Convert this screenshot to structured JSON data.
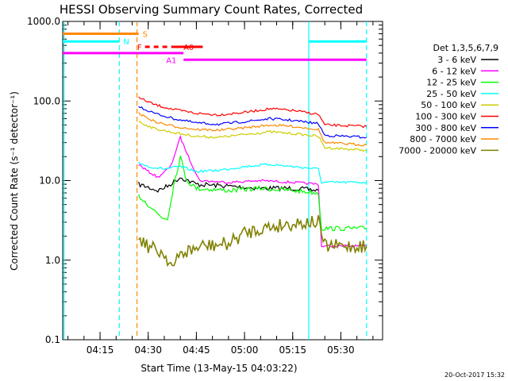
{
  "chart_data": {
    "type": "line",
    "title": "HESSI Observing Summary Count Rates, Corrected",
    "xlabel": "Start Time (13-May-15 04:03:22)",
    "ylabel": "Corrected Count Rate (s⁻¹ detector⁻¹)",
    "yscale": "log",
    "ylim": [
      0.1,
      1000
    ],
    "xlim": [
      "04:03:22",
      "05:43:00"
    ],
    "x_ticks": [
      "04:15",
      "04:30",
      "04:45",
      "05:00",
      "05:15",
      "05:30"
    ],
    "y_ticks": [
      "0.1",
      "1.0",
      "10.0",
      "100.0",
      "1000.0"
    ],
    "legend_title": "Det 1,3,5,6,7,9",
    "legend_position": "right",
    "series": [
      {
        "name": "3 - 6 keV",
        "color": "#000000",
        "points": [
          [
            "04:27",
            9.0
          ],
          [
            "04:33",
            7.5
          ],
          [
            "04:36",
            8.5
          ],
          [
            "04:40",
            11.0
          ],
          [
            "04:45",
            9.0
          ],
          [
            "04:55",
            8.5
          ],
          [
            "05:05",
            8.0
          ],
          [
            "05:15",
            8.0
          ],
          [
            "05:23",
            7.5
          ]
        ]
      },
      {
        "name": "6 - 12 keV",
        "color": "#ff00ff",
        "points": [
          [
            "04:27",
            16.0
          ],
          [
            "04:30",
            13.0
          ],
          [
            "04:33",
            11.0
          ],
          [
            "04:37",
            15.0
          ],
          [
            "04:40",
            35.0
          ],
          [
            "04:43",
            18.0
          ],
          [
            "04:46",
            10.0
          ],
          [
            "04:55",
            9.5
          ],
          [
            "05:05",
            10.0
          ],
          [
            "05:15",
            9.5
          ],
          [
            "05:23",
            9.0
          ],
          [
            "05:24",
            1.5
          ],
          [
            "05:38",
            1.5
          ]
        ]
      },
      {
        "name": "12 - 25 keV",
        "color": "#00ff00",
        "points": [
          [
            "04:27",
            6.5
          ],
          [
            "04:30",
            5.0
          ],
          [
            "04:34",
            3.5
          ],
          [
            "04:36",
            3.3
          ],
          [
            "04:38",
            9.0
          ],
          [
            "04:40",
            20.0
          ],
          [
            "04:42",
            10.0
          ],
          [
            "04:45",
            8.0
          ],
          [
            "04:55",
            7.5
          ],
          [
            "05:05",
            8.0
          ],
          [
            "05:15",
            7.5
          ],
          [
            "05:23",
            7.0
          ],
          [
            "05:24",
            2.5
          ],
          [
            "05:38",
            2.5
          ]
        ]
      },
      {
        "name": "25 - 50 keV",
        "color": "#00ffff",
        "points": [
          [
            "04:27",
            17.0
          ],
          [
            "04:30",
            15.0
          ],
          [
            "04:35",
            14.0
          ],
          [
            "04:40",
            15.0
          ],
          [
            "04:45",
            13.0
          ],
          [
            "04:52",
            13.5
          ],
          [
            "05:00",
            15.0
          ],
          [
            "05:08",
            16.0
          ],
          [
            "05:15",
            15.0
          ],
          [
            "05:23",
            14.0
          ],
          [
            "05:24",
            9.5
          ],
          [
            "05:38",
            9.5
          ]
        ]
      },
      {
        "name": "50 - 100 keV",
        "color": "#cccc00",
        "points": [
          [
            "04:27",
            55.0
          ],
          [
            "04:32",
            45.0
          ],
          [
            "04:38",
            40.0
          ],
          [
            "04:45",
            36.0
          ],
          [
            "04:52",
            35.0
          ],
          [
            "05:00",
            38.0
          ],
          [
            "05:08",
            41.0
          ],
          [
            "05:15",
            39.0
          ],
          [
            "05:23",
            36.0
          ],
          [
            "05:25",
            26.0
          ],
          [
            "05:38",
            24.0
          ]
        ]
      },
      {
        "name": "100 - 300 keV",
        "color": "#ff0000",
        "points": [
          [
            "04:27",
            110.0
          ],
          [
            "04:32",
            90.0
          ],
          [
            "04:38",
            78.0
          ],
          [
            "04:45",
            70.0
          ],
          [
            "04:52",
            67.0
          ],
          [
            "05:00",
            72.0
          ],
          [
            "05:08",
            80.0
          ],
          [
            "05:15",
            76.0
          ],
          [
            "05:23",
            68.0
          ],
          [
            "05:25",
            50.0
          ],
          [
            "05:38",
            48.0
          ]
        ]
      },
      {
        "name": "300 - 800 keV",
        "color": "#0000ff",
        "points": [
          [
            "04:27",
            85.0
          ],
          [
            "04:32",
            70.0
          ],
          [
            "04:38",
            60.0
          ],
          [
            "04:45",
            53.0
          ],
          [
            "04:52",
            51.0
          ],
          [
            "05:00",
            55.0
          ],
          [
            "05:08",
            60.0
          ],
          [
            "05:15",
            57.0
          ],
          [
            "05:23",
            52.0
          ],
          [
            "05:25",
            37.0
          ],
          [
            "05:38",
            35.0
          ]
        ]
      },
      {
        "name": "800 - 7000 keV",
        "color": "#ff8800",
        "points": [
          [
            "04:27",
            70.0
          ],
          [
            "04:32",
            55.0
          ],
          [
            "04:38",
            48.0
          ],
          [
            "04:45",
            44.0
          ],
          [
            "04:52",
            43.0
          ],
          [
            "05:00",
            46.0
          ],
          [
            "05:08",
            50.0
          ],
          [
            "05:15",
            48.0
          ],
          [
            "05:23",
            44.0
          ],
          [
            "05:25",
            30.0
          ],
          [
            "05:38",
            28.0
          ]
        ]
      },
      {
        "name": "7000 - 20000 keV",
        "color": "#808000",
        "points": [
          [
            "04:27",
            2.0
          ],
          [
            "04:30",
            1.5
          ],
          [
            "04:35",
            1.2
          ],
          [
            "04:38",
            0.8
          ],
          [
            "04:40",
            1.2
          ],
          [
            "04:47",
            1.5
          ],
          [
            "04:55",
            1.6
          ],
          [
            "05:00",
            2.2
          ],
          [
            "05:05",
            2.5
          ],
          [
            "05:10",
            2.7
          ],
          [
            "05:15",
            2.9
          ],
          [
            "05:20",
            3.0
          ],
          [
            "05:23",
            3.0
          ],
          [
            "05:25",
            1.5
          ],
          [
            "05:38",
            1.5
          ]
        ]
      }
    ],
    "flags": [
      {
        "label": "S",
        "color": "#ff8800",
        "value": 700,
        "start": "04:03:22",
        "end": "04:27"
      },
      {
        "label": "N",
        "color": "#00ffff",
        "value": 560,
        "start": "04:03:22",
        "end": "04:21"
      },
      {
        "label": "F",
        "color": "#ff0000",
        "value": 480,
        "start": "04:29",
        "end": "04:38",
        "dashed": true
      },
      {
        "label": "A0",
        "color": "#ff0000",
        "value": 480,
        "start": "04:38",
        "end": "04:47"
      },
      {
        "label": "A1",
        "color": "#ff00ff",
        "value": 330,
        "start": "04:41",
        "end": "05:38"
      },
      {
        "label": "",
        "color": "#ff00ff",
        "value": 400,
        "start": "04:03:22",
        "end": "04:41"
      },
      {
        "label": "",
        "color": "#00ffff",
        "value": 560,
        "start": "05:20",
        "end": "05:38"
      }
    ],
    "vertical_lines": [
      {
        "time": "04:03:45",
        "color": "#00ffff",
        "style": "solid"
      },
      {
        "time": "04:21",
        "color": "#00ffff",
        "style": "dashed"
      },
      {
        "time": "04:26:30",
        "color": "#ff8800",
        "style": "dashed"
      },
      {
        "time": "05:20",
        "color": "#00ffff",
        "style": "solid"
      },
      {
        "time": "05:38",
        "color": "#00ffff",
        "style": "dashed"
      }
    ],
    "timestamp": "20-Oct-2017 15:32"
  }
}
